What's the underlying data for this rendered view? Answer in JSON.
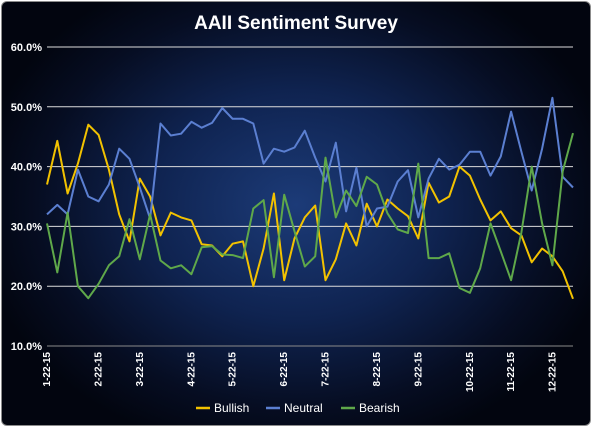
{
  "chart_data": {
    "type": "line",
    "title": "AAII Sentiment Survey",
    "xlabel": "",
    "ylabel": "",
    "ylim": [
      10,
      60
    ],
    "y_ticks": [
      "10.0%",
      "20.0%",
      "30.0%",
      "40.0%",
      "50.0%",
      "60.0%"
    ],
    "y_tick_values": [
      10,
      20,
      30,
      40,
      50,
      60
    ],
    "x_tick_labels": [
      "1-22-15",
      "2-22-15",
      "3-22-15",
      "4-22-15",
      "5-22-15",
      "6-22-15",
      "7-22-15",
      "8-22-15",
      "9-22-15",
      "10-22-15",
      "11-22-15",
      "12-22-15"
    ],
    "x_tick_indices": [
      0,
      5,
      9,
      14,
      18,
      23,
      27,
      32,
      36,
      41,
      45,
      49
    ],
    "grid": true,
    "legend_position": "bottom",
    "series": [
      {
        "name": "Bullish",
        "color": "#f2c200",
        "values": [
          37,
          44.3,
          35.5,
          40.5,
          47,
          45.3,
          39.5,
          32,
          27.5,
          38,
          35,
          28.5,
          32.3,
          31.5,
          31,
          27,
          26.8,
          25,
          27.1,
          27.5,
          20,
          26.3,
          35.5,
          21,
          28,
          31.5,
          33.5,
          21,
          24.5,
          30.5,
          26.8,
          33.8,
          30,
          34.5,
          33,
          31.7,
          28,
          37.3,
          34,
          35,
          40,
          38.5,
          34.5,
          31,
          32.5,
          29.7,
          28.5,
          24,
          26.3,
          25,
          22.5,
          17.9
        ]
      },
      {
        "name": "Neutral",
        "color": "#5b7fd1",
        "values": [
          32,
          33.6,
          32,
          39.5,
          35,
          34.2,
          37,
          43,
          41.3,
          36.5,
          31.3,
          47.2,
          45.2,
          45.5,
          47.5,
          46.5,
          47.3,
          49.8,
          48,
          48,
          47.2,
          40.5,
          43,
          42.5,
          43.2,
          46,
          41.5,
          37.5,
          44,
          32.5,
          39.8,
          30,
          33,
          33.3,
          37.5,
          39.4,
          31.5,
          38,
          41.3,
          39.5,
          40.3,
          42.5,
          42.5,
          38.5,
          41.7,
          49.2,
          42.5,
          36,
          43,
          51.5,
          38.3,
          36.5
        ]
      },
      {
        "name": "Bearish",
        "color": "#5fa84a",
        "values": [
          30.5,
          22.3,
          32.3,
          20,
          18,
          20.4,
          23.5,
          25,
          31.2,
          24.5,
          32,
          24.3,
          23,
          23.5,
          22,
          26.5,
          26.7,
          25.3,
          25.2,
          24.7,
          33,
          34.4,
          21.5,
          35.3,
          29.2,
          23.3,
          25,
          41.5,
          31.5,
          36,
          33.4,
          38.3,
          37,
          32.2,
          29.5,
          28.9,
          40.5,
          24.7,
          24.7,
          25.5,
          19.7,
          18.9,
          23,
          30.5,
          25.8,
          21,
          29,
          40,
          30.5,
          23.5,
          39.2,
          45.6
        ]
      }
    ]
  }
}
